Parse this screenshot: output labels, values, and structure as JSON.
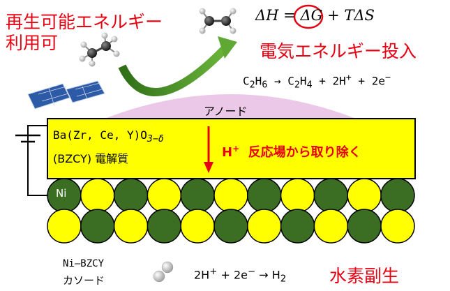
{
  "renewable": {
    "line1": "再生可能エネルギー",
    "line2": "利用可"
  },
  "thermo": {
    "lhs": "ΔH",
    "eq": "=",
    "dg": "ΔG",
    "rest": "+ TΔS"
  },
  "electric_input": "電気エネルギー投入",
  "anode_reaction": {
    "r1": "C",
    "r1_sub": "2",
    "r1b": "H",
    "r1b_sub": "6",
    "arrow": " → ",
    "p1": "C",
    "p1_sub": "2",
    "p1b": "H",
    "p1b_sub": "4",
    "p2": " + 2H",
    "p2_sup": "+",
    "p3": " + 2e",
    "p3_sup": "−"
  },
  "anode_label": "アノード",
  "electrolyte": {
    "formula": "Ba(Zr, Ce, Y)O",
    "formula_sub": "3−δ",
    "line2": "(BZCY) 電解質"
  },
  "proton_removal": {
    "ion": "H",
    "ion_sup": "+",
    "text": "反応場から取り除く"
  },
  "ni_label": "Ni",
  "cathode_label": {
    "line1": "Ni–BZCY",
    "line2": "カソード"
  },
  "cathode_reaction": {
    "a": "2H",
    "a_sup": "+",
    "b": " + 2e",
    "b_sup": "−",
    "arrow": " → ",
    "c": "H",
    "c_sub": "2"
  },
  "hydrogen_byproduct": "水素副生",
  "colors": {
    "accent_red": "#e60012",
    "electrolyte_yellow": "#ffff00",
    "ni_green": "#3b6e22",
    "bzcy_yellow": "#ffff00",
    "anode_pink": "#ecc8e8",
    "arrow_green": "#4f9a2a",
    "panel_blue": "#2d5aa6"
  },
  "icons": [
    "solar-panel-icon",
    "ethane-molecule-icon",
    "ethylene-molecule-icon",
    "hydrogen-molecule-icon"
  ]
}
